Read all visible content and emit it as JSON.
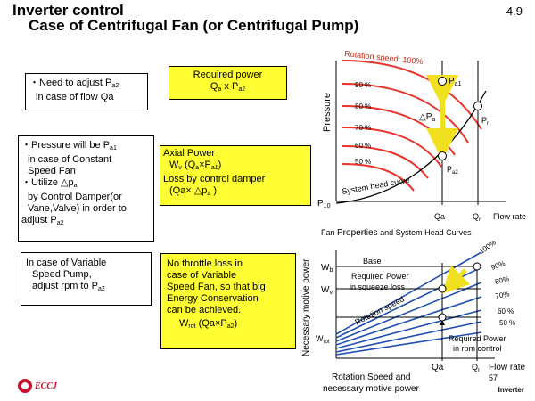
{
  "title": {
    "line1": "Inverter control",
    "line2": "Case of Centrifugal Fan (or Centrifugal Pump)"
  },
  "slide_number": "4.9",
  "page_number": "57",
  "footer": "Inverter",
  "logo_text": "ECCJ",
  "boxes": {
    "b1": {
      "l1": "・Need to adjust P",
      "l1s": "a2",
      "l2": "in case of flow  Qa"
    },
    "b2": {
      "l1": "Required power",
      "l2a": "Q",
      "l2as": "a",
      "l2b": " x P",
      "l2bs": "a2"
    },
    "b3": {
      "l1": "・Pressure will be P",
      "l1s": "a1",
      "l2": "in case of Constant",
      "l3": "Speed Fan",
      "l4": "・Utilize △p",
      "l4s": "a",
      "l5": "by Control Damper(or",
      "l6": "Vane,Valve)  in order to",
      "l7": "adjust P",
      "l7s": "a2"
    },
    "b4": {
      "l1": "Axial Power",
      "l2a": "W",
      "l2as": "v",
      "l2b": "  (Q",
      "l2bs": "a",
      "l2c": "×P",
      "l2cs": "a1",
      "l2d": ")",
      "l3": "Loss by control damper",
      "l4a": "(Qa× △p",
      "l4s": "a",
      "l4b": " )"
    },
    "b5": {
      "l1": "In case of Variable",
      "l2": "Speed Pump,",
      "l3": "adjust rpm to P",
      "l3s": "a2"
    },
    "b6": {
      "l1": "No throttle loss in",
      "l2": "case of Variable",
      "l3": "Speed Fan, so that big",
      "l4": "Energy Conservation",
      "l5": "can be achieved.",
      "l6a": "W",
      "l6as": "rot",
      "l6b": "  (Qa×P",
      "l6bs": "a2",
      "l6c": ")"
    }
  },
  "top_chart": {
    "ylabel": "Pressure",
    "xlabel": "Flow rate",
    "caption_a": "Fan ",
    "caption_b": "Properties",
    "caption_c": " and System Head Curves",
    "rotation_label": "Rotation speed: 100%",
    "speed_labels": [
      "90 %",
      "80 %",
      "70 %",
      "60 %",
      "50 %"
    ],
    "system_label": "System head curve",
    "pa1": "P",
    "pa1s": "a1",
    "pa2": "P",
    "pa2s": "a2",
    "pr": "P",
    "prs": "r",
    "dpa": "△P",
    "dpas": "a",
    "p10": "P",
    "p10s": "10",
    "qa": "Qa",
    "qr": "Q",
    "qrs": "r"
  },
  "bottom_chart": {
    "ylabel": "Necessary motive power",
    "xlabel": "Flow rate",
    "base": "Base",
    "squeeze_l1": "Required Power",
    "squeeze_l2": "in squeeze loss",
    "rotation_speed": "Rotation speed",
    "rpm_l1": "Required Power",
    "rpm_l2": "in rpm control",
    "wb": "W",
    "wbs": "b",
    "wv": "W",
    "wvs": "v",
    "wrot": "W",
    "wrots": "rot",
    "pct": [
      "100%",
      "90%",
      "80%",
      "70%",
      "60 %",
      "50 %"
    ],
    "qa": "Qa",
    "qr": "Q",
    "qrs": "r",
    "caption_l1": "Rotation Speed and",
    "caption_l2": "necessary motive power"
  },
  "colors": {
    "curve": "#e8342a",
    "highlight": "#ffff33",
    "arrow": "#f0e020",
    "power_line": "#1f4fb4",
    "logo": "#c8102e"
  }
}
